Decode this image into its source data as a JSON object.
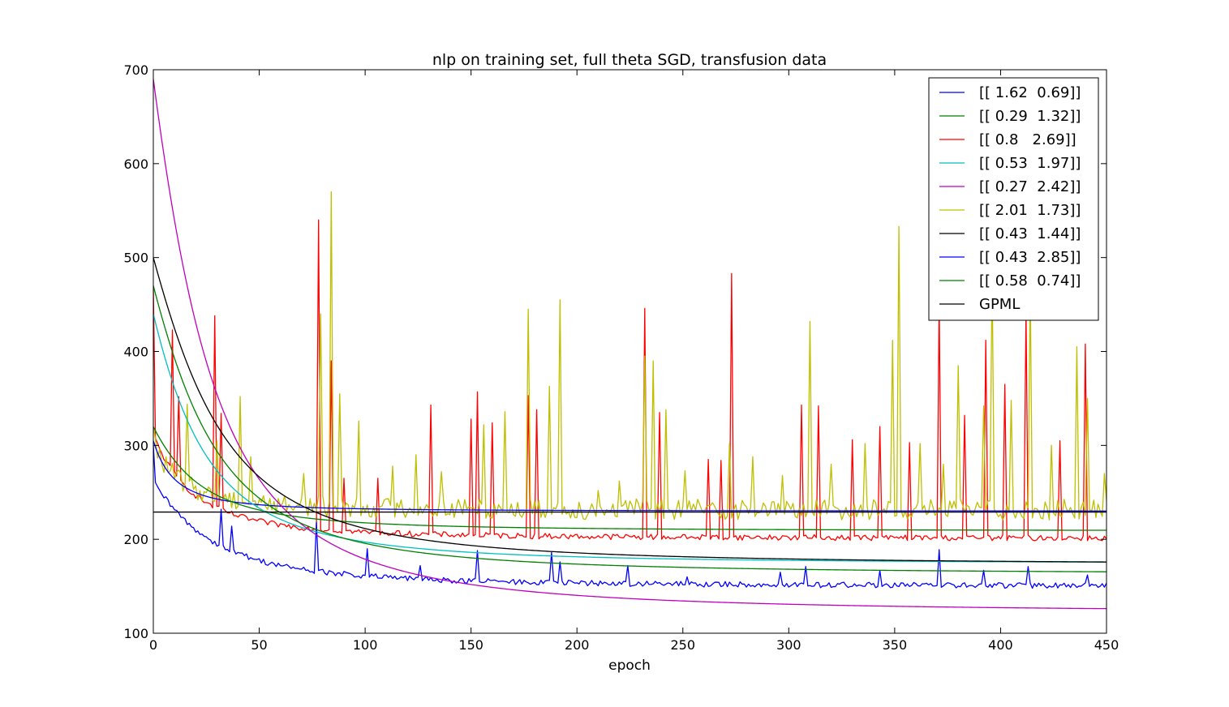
{
  "chart_data": {
    "type": "line",
    "title": "nlp on training set, full theta SGD, transfusion data",
    "xlabel": "epoch",
    "ylabel": "",
    "xlim": [
      0,
      450
    ],
    "ylim": [
      100,
      700
    ],
    "xticks": [
      0,
      50,
      100,
      150,
      200,
      250,
      300,
      350,
      400,
      450
    ],
    "yticks": [
      100,
      200,
      300,
      400,
      500,
      600,
      700
    ],
    "grid": false,
    "legend_position": "top-right",
    "series": [
      {
        "name": "[[ 1.62  0.69]]",
        "color": "#0000ff",
        "kind": "smooth",
        "start": 305,
        "plateau": 230,
        "rate": 0.1
      },
      {
        "name": "[[ 0.29  1.32]]",
        "color": "#008000",
        "kind": "smooth",
        "start": 320,
        "plateau": 209,
        "rate": 0.04
      },
      {
        "name": "[[ 0.8   2.69]]",
        "color": "#ff0000",
        "kind": "noisy",
        "start": 470,
        "base_start": 310,
        "base_plateau": 200,
        "rate": 0.05,
        "spikes": [
          [
            9,
            423
          ],
          [
            12,
            352
          ],
          [
            29,
            438
          ],
          [
            32,
            334
          ],
          [
            78,
            540
          ],
          [
            84,
            390
          ],
          [
            90,
            265
          ],
          [
            106,
            265
          ],
          [
            131,
            343
          ],
          [
            150,
            328
          ],
          [
            153,
            357
          ],
          [
            160,
            324
          ],
          [
            177,
            353
          ],
          [
            181,
            338
          ],
          [
            232,
            446
          ],
          [
            239,
            335
          ],
          [
            262,
            285
          ],
          [
            268,
            284
          ],
          [
            273,
            483
          ],
          [
            306,
            343
          ],
          [
            314,
            342
          ],
          [
            330,
            306
          ],
          [
            343,
            320
          ],
          [
            357,
            303
          ],
          [
            371,
            454
          ],
          [
            383,
            332
          ],
          [
            393,
            412
          ],
          [
            402,
            365
          ],
          [
            412,
            443
          ],
          [
            428,
            305
          ],
          [
            440,
            408
          ]
        ]
      },
      {
        "name": "[[ 0.53  1.97]]",
        "color": "#00bfbf",
        "kind": "smooth",
        "start": 440,
        "plateau": 174,
        "rate": 0.035
      },
      {
        "name": "[[ 0.27  2.42]]",
        "color": "#bf00bf",
        "kind": "smooth",
        "start": 690,
        "plateau": 122,
        "rate": 0.03
      },
      {
        "name": "[[ 2.01  1.73]]",
        "color": "#bfbf00",
        "kind": "noisy",
        "start": 320,
        "base_start": 300,
        "base_plateau": 228,
        "rate": 0.08,
        "spikes": [
          [
            16,
            344
          ],
          [
            30,
            305
          ],
          [
            41,
            352
          ],
          [
            46,
            288
          ],
          [
            71,
            270
          ],
          [
            79,
            440
          ],
          [
            84,
            570
          ],
          [
            88,
            355
          ],
          [
            97,
            326
          ],
          [
            113,
            278
          ],
          [
            124,
            290
          ],
          [
            136,
            272
          ],
          [
            156,
            322
          ],
          [
            166,
            336
          ],
          [
            177,
            445
          ],
          [
            187,
            363
          ],
          [
            192,
            455
          ],
          [
            210,
            252
          ],
          [
            220,
            262
          ],
          [
            232,
            395
          ],
          [
            236,
            390
          ],
          [
            242,
            338
          ],
          [
            251,
            273
          ],
          [
            272,
            302
          ],
          [
            283,
            288
          ],
          [
            297,
            268
          ],
          [
            310,
            432
          ],
          [
            320,
            280
          ],
          [
            336,
            302
          ],
          [
            349,
            412
          ],
          [
            352,
            533
          ],
          [
            362,
            302
          ],
          [
            373,
            280
          ],
          [
            380,
            385
          ],
          [
            392,
            342
          ],
          [
            396,
            485
          ],
          [
            405,
            348
          ],
          [
            414,
            470
          ],
          [
            424,
            300
          ],
          [
            436,
            405
          ],
          [
            441,
            350
          ],
          [
            449,
            270
          ]
        ]
      },
      {
        "name": "[[ 0.43  1.44]]",
        "color": "#000000",
        "kind": "smooth",
        "start": 500,
        "plateau": 173,
        "rate": 0.025
      },
      {
        "name": "[[ 0.43  2.85]]",
        "color": "#0000ff",
        "kind": "noisy",
        "start": 300,
        "base_start": 260,
        "base_plateau": 149,
        "rate": 0.03,
        "spikes": [
          [
            32,
            232
          ],
          [
            37,
            214
          ],
          [
            77,
            218
          ],
          [
            101,
            190
          ],
          [
            126,
            172
          ],
          [
            153,
            188
          ],
          [
            188,
            186
          ],
          [
            192,
            176
          ],
          [
            224,
            172
          ],
          [
            252,
            160
          ],
          [
            296,
            165
          ],
          [
            308,
            171
          ],
          [
            343,
            167
          ],
          [
            371,
            189
          ],
          [
            392,
            167
          ],
          [
            413,
            171
          ],
          [
            441,
            162
          ]
        ]
      },
      {
        "name": "[[ 0.58  0.74]]",
        "color": "#008000",
        "kind": "smooth",
        "start": 470,
        "plateau": 163,
        "rate": 0.028
      },
      {
        "name": "GPML",
        "color": "#000000",
        "kind": "hline",
        "value": 229
      }
    ]
  }
}
